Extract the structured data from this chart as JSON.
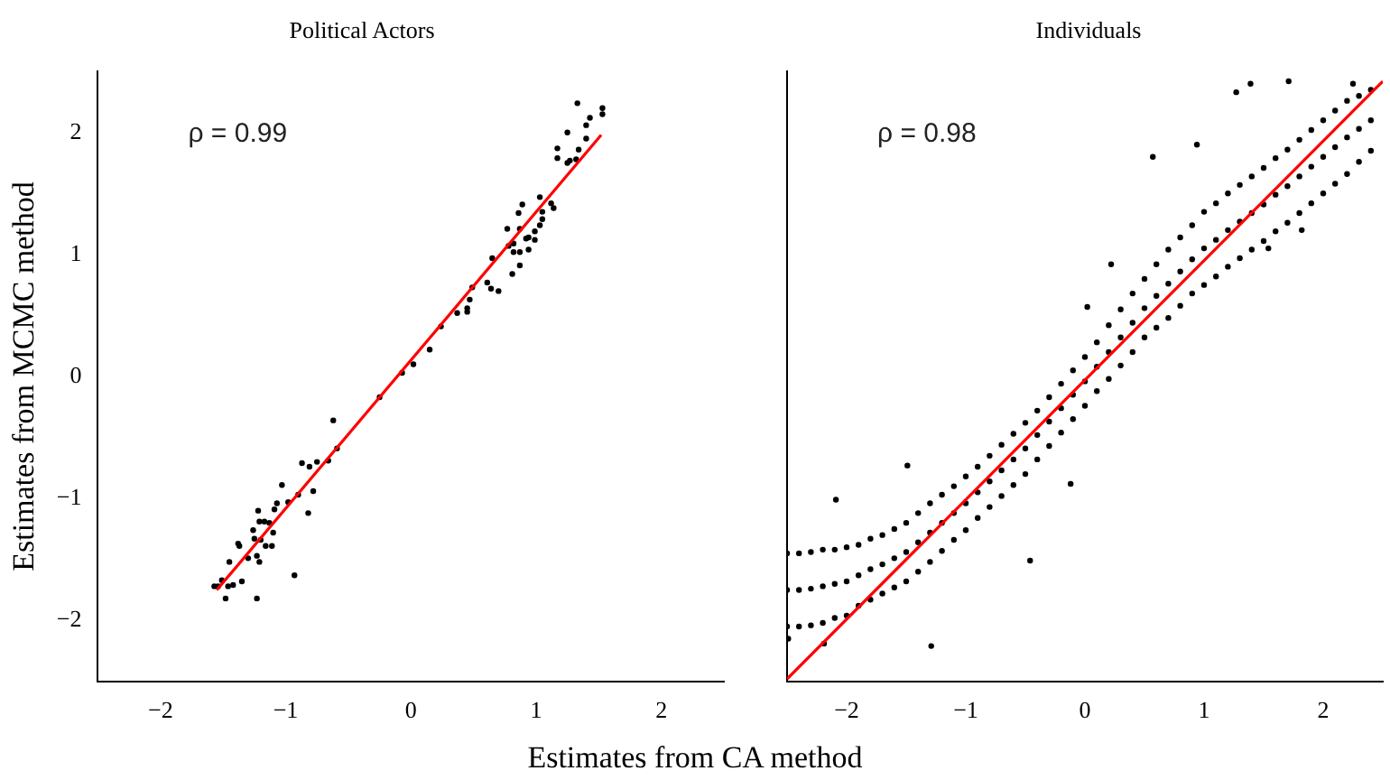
{
  "chart_data": [
    {
      "type": "scatter",
      "title": "Political Actors",
      "ylabel": "Estimates from MCMC method",
      "xlabel": "Estimates from CA method",
      "annotations": [
        "ρ = 0.99"
      ],
      "xlim": [
        -2.5,
        2.5
      ],
      "ylim": [
        -2.5,
        2.5
      ],
      "xticks": [
        -2,
        -1,
        0,
        1,
        2
      ],
      "yticks": [
        -2,
        -1,
        0,
        1,
        2
      ],
      "grid": false,
      "series": [
        {
          "type": "scatter",
          "marker": "circle",
          "color": "#000000",
          "x": [
            1.33,
            1.53,
            1.53,
            1.43,
            1.4,
            1.25,
            1.4,
            1.17,
            1.34,
            1.17,
            1.27,
            1.25,
            1.32,
            1.03,
            1.12,
            1.14,
            0.89,
            0.86,
            1.05,
            0.77,
            0.87,
            0.99,
            0.94,
            0.92,
            0.99,
            0.82,
            0.78,
            0.87,
            0.82,
            0.94,
            1.03,
            1.05,
            0.65,
            0.81,
            0.87,
            0.61,
            0.64,
            0.7,
            0.49,
            0.47,
            0.45,
            0.45,
            0.37,
            0.24,
            0.15,
            0.02,
            -0.07,
            -0.25,
            -0.62,
            -0.59,
            -0.66,
            -0.75,
            -0.87,
            -0.81,
            -0.78,
            -0.9,
            -0.98,
            -1.03,
            -1.07,
            -1.09,
            -0.82,
            -1.22,
            -1.17,
            -1.21,
            -1.13,
            -1.26,
            -1.1,
            -1.25,
            -1.2,
            -1.38,
            -1.37,
            -1.16,
            -1.11,
            -1.23,
            -1.3,
            -1.21,
            -1.45,
            -0.93,
            -1.35,
            -1.51,
            -1.54,
            -1.46,
            -1.57,
            -1.42,
            -1.48,
            -1.23
          ],
          "values": [
            2.24,
            2.2,
            2.15,
            2.12,
            2.06,
            2.0,
            1.95,
            1.87,
            1.86,
            1.79,
            1.77,
            1.75,
            1.78,
            1.47,
            1.42,
            1.38,
            1.41,
            1.34,
            1.35,
            1.21,
            1.21,
            1.19,
            1.14,
            1.13,
            1.12,
            1.09,
            1.07,
            1.02,
            1.02,
            1.04,
            1.24,
            1.29,
            0.97,
            0.84,
            0.91,
            0.77,
            0.72,
            0.7,
            0.73,
            0.63,
            0.56,
            0.53,
            0.52,
            0.41,
            0.22,
            0.1,
            0.03,
            -0.17,
            -0.36,
            -0.59,
            -0.69,
            -0.7,
            -0.71,
            -0.74,
            -0.94,
            -0.97,
            -1.03,
            -0.89,
            -1.04,
            -1.09,
            -1.12,
            -1.1,
            -1.19,
            -1.19,
            -1.2,
            -1.26,
            -1.28,
            -1.33,
            -1.34,
            -1.37,
            -1.39,
            -1.39,
            -1.39,
            -1.47,
            -1.49,
            -1.52,
            -1.52,
            -1.63,
            -1.68,
            -1.67,
            -1.72,
            -1.72,
            -1.72,
            -1.71,
            -1.82,
            -1.82
          ]
        },
        {
          "type": "line",
          "color": "#ff0000",
          "x": [
            -1.55,
            1.52
          ],
          "values": [
            -1.75,
            1.98
          ]
        }
      ]
    },
    {
      "type": "scatter",
      "title": "Individuals",
      "annotations": [
        "ρ = 0.98"
      ],
      "xlim": [
        -2.5,
        2.5
      ],
      "ylim": [
        -2.5,
        2.5
      ],
      "xticks": [
        -2,
        -1,
        0,
        1,
        2
      ],
      "yticks": [
        -2,
        -1,
        0,
        1,
        2
      ],
      "tick_labels": "x",
      "grid": false,
      "series": [
        {
          "type": "scatter",
          "marker": "circle",
          "color": "#000000",
          "x": [
            -2.5,
            -2.5,
            -2.5,
            -2.4,
            -2.4,
            -2.4,
            -2.3,
            -2.3,
            -2.3,
            -2.2,
            -2.2,
            -2.2,
            -2.1,
            -2.1,
            -2.1,
            -2.0,
            -2.0,
            -2.0,
            -1.9,
            -1.9,
            -1.9,
            -1.8,
            -1.8,
            -1.8,
            -1.7,
            -1.7,
            -1.7,
            -1.6,
            -1.6,
            -1.6,
            -1.5,
            -1.5,
            -1.5,
            -1.4,
            -1.4,
            -1.4,
            -1.3,
            -1.3,
            -1.3,
            -1.2,
            -1.2,
            -1.2,
            -1.1,
            -1.1,
            -1.1,
            -1.0,
            -1.0,
            -1.0,
            -0.9,
            -0.9,
            -0.9,
            -0.8,
            -0.8,
            -0.8,
            -0.7,
            -0.7,
            -0.7,
            -0.6,
            -0.6,
            -0.6,
            -0.5,
            -0.5,
            -0.5,
            -0.4,
            -0.4,
            -0.4,
            -0.3,
            -0.3,
            -0.3,
            -0.2,
            -0.2,
            -0.2,
            -0.1,
            -0.1,
            -0.1,
            0,
            0,
            0,
            0.1,
            0.1,
            0.1,
            0.2,
            0.2,
            0.2,
            0.3,
            0.3,
            0.3,
            0.4,
            0.4,
            0.4,
            0.5,
            0.5,
            0.5,
            0.6,
            0.6,
            0.6,
            0.7,
            0.7,
            0.7,
            0.8,
            0.8,
            0.8,
            0.9,
            0.9,
            0.9,
            1.0,
            1.0,
            1.0,
            1.1,
            1.1,
            1.1,
            1.2,
            1.2,
            1.2,
            1.3,
            1.3,
            1.3,
            1.4,
            1.4,
            1.4,
            1.5,
            1.5,
            1.5,
            1.6,
            1.6,
            1.6,
            1.7,
            1.7,
            1.7,
            1.8,
            1.8,
            1.8,
            1.9,
            1.9,
            1.9,
            2.0,
            2.0,
            2.0,
            2.1,
            2.1,
            2.1,
            2.2,
            2.2,
            2.2,
            2.3,
            2.3,
            2.3,
            2.4,
            2.4,
            2.4,
            -2.49,
            -2.09,
            -1.49,
            -1.29,
            -0.46,
            -0.12,
            0.22,
            0.57,
            1.27,
            1.39,
            1.71,
            0.94,
            2.25,
            1.82,
            1.54,
            -2.19,
            0.02
          ],
          "values": [
            -1.75,
            -1.45,
            -2.05,
            -1.75,
            -1.45,
            -2.05,
            -1.74,
            -1.44,
            -2.04,
            -1.72,
            -1.42,
            -2.02,
            -1.7,
            -1.42,
            -1.98,
            -1.68,
            -1.4,
            -1.96,
            -1.63,
            -1.38,
            -1.88,
            -1.58,
            -1.33,
            -1.83,
            -1.54,
            -1.3,
            -1.78,
            -1.49,
            -1.25,
            -1.73,
            -1.44,
            -1.2,
            -1.68,
            -1.36,
            -1.12,
            -1.6,
            -1.28,
            -1.04,
            -1.52,
            -1.2,
            -0.97,
            -1.43,
            -1.12,
            -0.9,
            -1.34,
            -1.04,
            -0.82,
            -1.26,
            -0.95,
            -0.74,
            -1.16,
            -0.86,
            -0.65,
            -1.07,
            -0.77,
            -0.56,
            -0.98,
            -0.68,
            -0.47,
            -0.89,
            -0.59,
            -0.38,
            -0.8,
            -0.48,
            -0.28,
            -0.68,
            -0.37,
            -0.17,
            -0.57,
            -0.26,
            -0.06,
            -0.46,
            -0.15,
            0.05,
            -0.35,
            -0.04,
            0.16,
            -0.24,
            0.08,
            0.28,
            -0.12,
            0.2,
            0.42,
            -0.02,
            0.32,
            0.55,
            0.09,
            0.44,
            0.68,
            0.2,
            0.56,
            0.8,
            0.32,
            0.66,
            0.92,
            0.4,
            0.76,
            1.04,
            0.48,
            0.86,
            1.14,
            0.58,
            0.96,
            1.24,
            0.68,
            1.05,
            1.35,
            0.75,
            1.12,
            1.42,
            0.82,
            1.2,
            1.5,
            0.9,
            1.27,
            1.57,
            0.97,
            1.34,
            1.64,
            1.04,
            1.41,
            1.71,
            1.11,
            1.49,
            1.79,
            1.19,
            1.56,
            1.86,
            1.26,
            1.64,
            1.94,
            1.34,
            1.72,
            2.02,
            1.42,
            1.8,
            2.1,
            1.5,
            1.88,
            2.18,
            1.58,
            1.96,
            2.26,
            1.66,
            2.03,
            2.3,
            1.76,
            2.1,
            2.35,
            1.85,
            -2.15,
            -1.01,
            -0.73,
            -2.21,
            -1.51,
            -0.88,
            0.92,
            1.8,
            2.33,
            2.4,
            2.42,
            1.9,
            2.4,
            1.2,
            1.05,
            -2.19,
            0.57
          ]
        },
        {
          "type": "line",
          "color": "#ff0000",
          "x": [
            -2.5,
            2.5
          ],
          "values": [
            -2.48,
            2.42
          ]
        }
      ]
    }
  ]
}
